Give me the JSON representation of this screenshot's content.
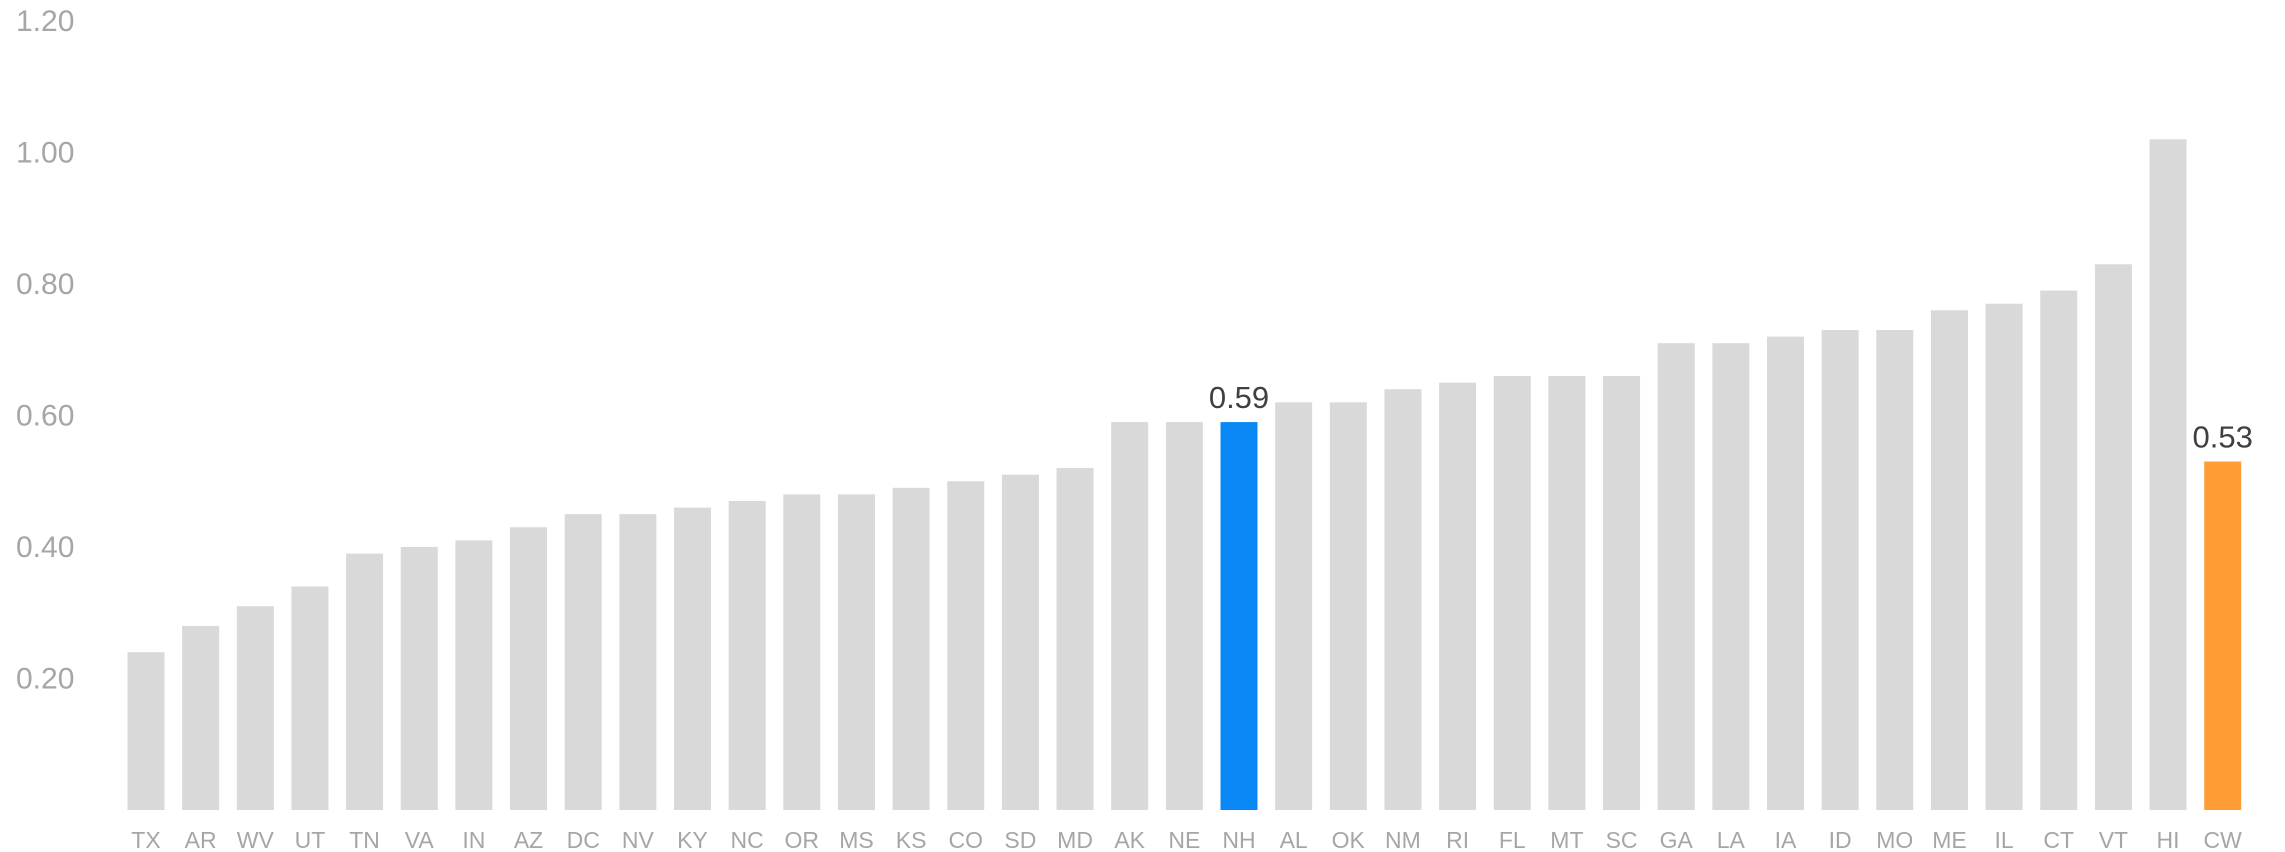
{
  "chart_data": {
    "type": "bar",
    "title": "",
    "xlabel": "",
    "ylabel": "",
    "ylim": [
      0,
      1.2
    ],
    "yticks": [
      0.2,
      0.4,
      0.6,
      0.8,
      1.0,
      1.2
    ],
    "ytick_labels": [
      "0.20",
      "0.40",
      "0.60",
      "0.80",
      "1.00",
      "1.20"
    ],
    "grid": false,
    "legend": "none",
    "categories": [
      "TX",
      "AR",
      "WV",
      "UT",
      "TN",
      "VA",
      "IN",
      "AZ",
      "DC",
      "NV",
      "KY",
      "NC",
      "OR",
      "MS",
      "KS",
      "CO",
      "SD",
      "MD",
      "AK",
      "NE",
      "NH",
      "AL",
      "OK",
      "NM",
      "RI",
      "FL",
      "MT",
      "SC",
      "GA",
      "LA",
      "IA",
      "ID",
      "MO",
      "ME",
      "IL",
      "CT",
      "VT",
      "HI",
      "CW"
    ],
    "values": [
      0.24,
      0.28,
      0.31,
      0.34,
      0.39,
      0.4,
      0.41,
      0.43,
      0.45,
      0.45,
      0.46,
      0.47,
      0.48,
      0.48,
      0.49,
      0.5,
      0.51,
      0.52,
      0.59,
      0.59,
      0.59,
      0.62,
      0.62,
      0.64,
      0.65,
      0.66,
      0.66,
      0.66,
      0.71,
      0.71,
      0.72,
      0.73,
      0.73,
      0.76,
      0.77,
      0.79,
      0.83,
      1.02,
      0.53
    ],
    "colors": {
      "default": "#d9d9d9",
      "highlight": {
        "NH": "#0a88f5",
        "CW": "#ff9c33"
      }
    },
    "data_labels": [
      {
        "category": "NH",
        "text": "0.59"
      },
      {
        "category": "CW",
        "text": "0.53"
      }
    ]
  }
}
